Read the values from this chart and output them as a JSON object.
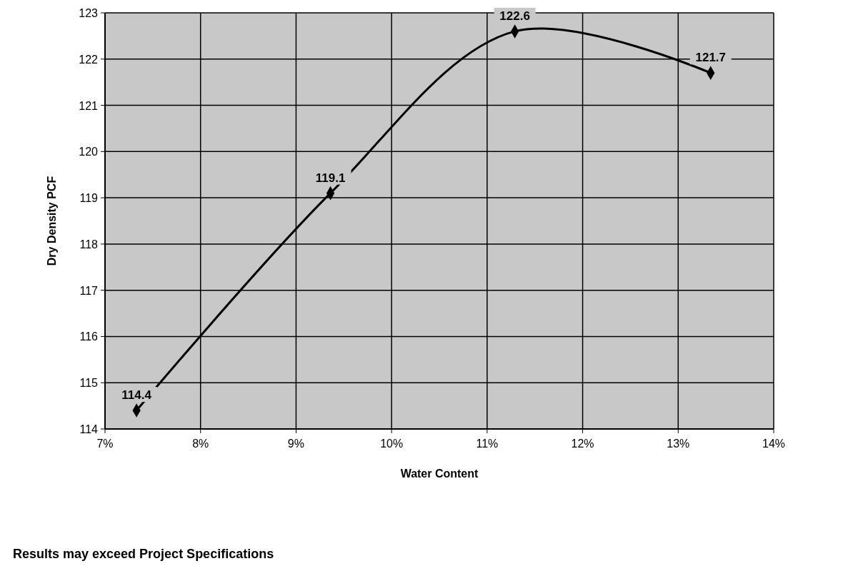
{
  "chart_data": {
    "type": "line",
    "xlabel": "Water Content",
    "ylabel": "Dry Density PCF",
    "x": [
      7.33,
      9.36,
      11.29,
      13.34
    ],
    "series": [
      {
        "color": "#000000",
        "values": [
          114.4,
          119.1,
          122.6,
          121.7
        ]
      }
    ],
    "xlim": [
      7,
      14
    ],
    "xticks": [
      {
        "value": 7,
        "label": "7%"
      },
      {
        "value": 8,
        "label": "8%"
      },
      {
        "value": 9,
        "label": "9%"
      },
      {
        "value": 10,
        "label": "10%"
      },
      {
        "value": 11,
        "label": "11%"
      },
      {
        "value": 12,
        "label": "12%"
      },
      {
        "value": 13,
        "label": "13%"
      },
      {
        "value": 14,
        "label": "14%"
      }
    ],
    "ylim": [
      114,
      123
    ],
    "yticks": [
      114,
      115,
      116,
      117,
      118,
      119,
      120,
      121,
      122,
      123
    ],
    "grid": true,
    "marker": "diamond",
    "line_style": "solid",
    "data_labels": true,
    "annotations": [
      "Results may exceed Project Specifications"
    ]
  }
}
